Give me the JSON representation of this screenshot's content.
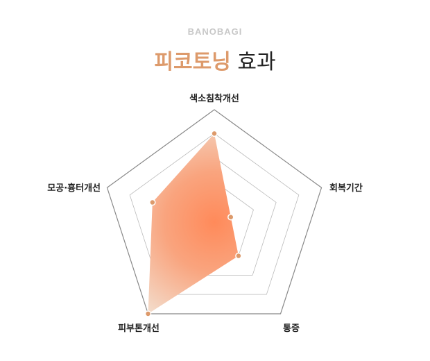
{
  "brand": "BANOBAGI",
  "title": {
    "highlight": "피코토닝",
    "rest": "효과"
  },
  "chart_data": {
    "type": "radar",
    "categories": [
      "색소침착개선",
      "회복기간",
      "통증",
      "피부톤개선",
      "모공·흉터개선"
    ],
    "values": [
      4,
      1,
      2,
      5,
      3
    ],
    "rlim": [
      1,
      5
    ],
    "levels": 5,
    "grid": true,
    "colors": {
      "fill_center": "#ff8a5a",
      "fill_edge": "#f3dccb",
      "point": "#dd9a6b",
      "grid": "#bbbbbb",
      "outer": "#888888"
    }
  }
}
